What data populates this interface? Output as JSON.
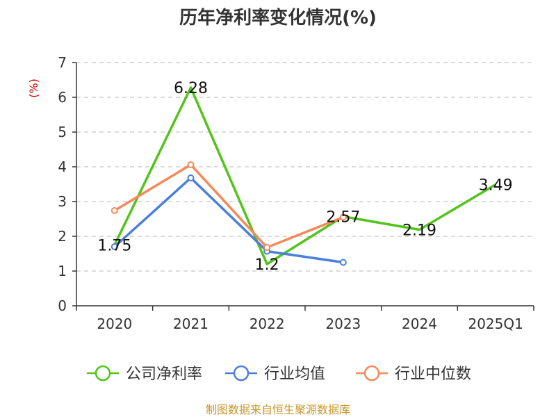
{
  "chart_data": {
    "type": "line",
    "title": "历年净利率变化情况(%)",
    "xlabel": "",
    "ylabel": "(%)",
    "categories": [
      "2020",
      "2021",
      "2022",
      "2023",
      "2024",
      "2025Q1"
    ],
    "ylim": [
      0,
      7
    ],
    "yticks": [
      0,
      1,
      2,
      3,
      4,
      5,
      6,
      7
    ],
    "grid": true,
    "legend_position": "bottom",
    "series": [
      {
        "name": "公司净利率",
        "color": "#52c41a",
        "values": [
          1.75,
          6.28,
          1.2,
          2.57,
          2.19,
          3.49
        ],
        "labels": [
          "1.75",
          "6.28",
          "1.2",
          "2.57",
          "2.19",
          "3.49"
        ],
        "markers": false
      },
      {
        "name": "行业均值",
        "color": "#4a7fdc",
        "values": [
          1.7,
          3.68,
          1.57,
          1.25,
          null,
          null
        ],
        "markers": true
      },
      {
        "name": "行业中位数",
        "color": "#f5895a",
        "values": [
          2.74,
          4.06,
          1.68,
          2.55,
          null,
          null
        ],
        "markers": true
      }
    ],
    "source": "制图数据来自恒生聚源数据库"
  }
}
